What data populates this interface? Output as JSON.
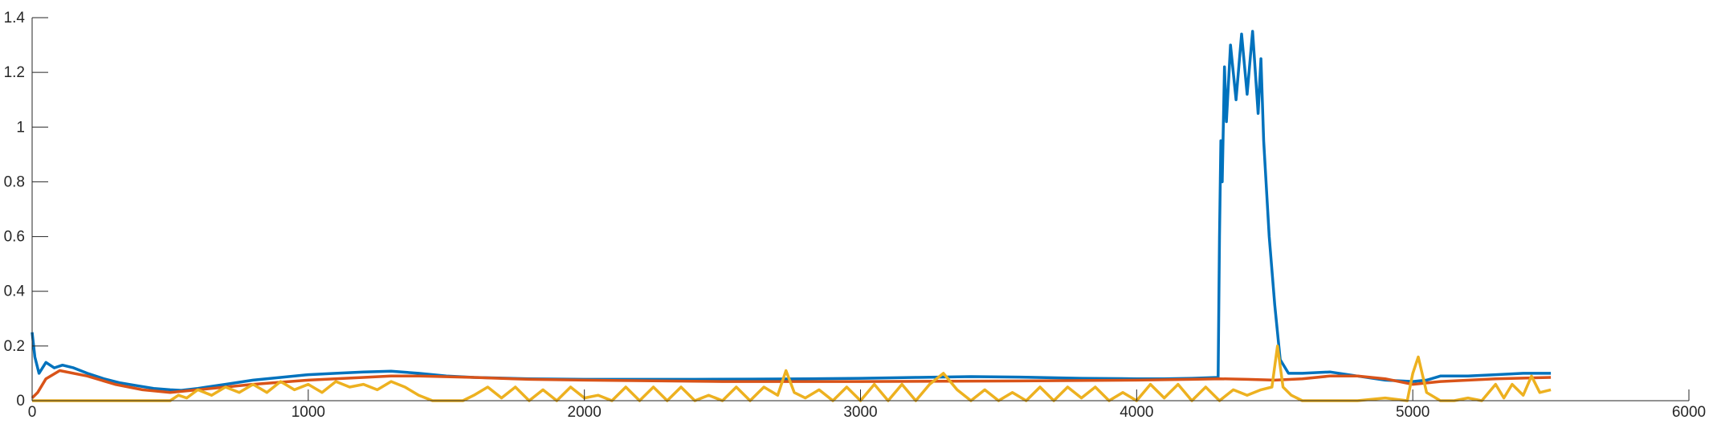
{
  "chart_data": {
    "type": "line",
    "title": "",
    "xlabel": "",
    "ylabel": "",
    "xlim": [
      0,
      6000
    ],
    "ylim": [
      0,
      1.4
    ],
    "grid": false,
    "legend": "none",
    "x_ticks": [
      "0",
      "1000",
      "2000",
      "3000",
      "4000",
      "5000",
      "6000"
    ],
    "y_ticks": [
      "0",
      "0.2",
      "0.4",
      "0.6",
      "0.8",
      "1",
      "1.2",
      "1.4"
    ],
    "series": [
      {
        "color": "#0072BD",
        "x": [
          0,
          10,
          25,
          50,
          80,
          110,
          150,
          200,
          260,
          320,
          380,
          440,
          500,
          540,
          600,
          700,
          800,
          900,
          1000,
          1100,
          1200,
          1300,
          1400,
          1500,
          1600,
          1800,
          2000,
          2200,
          2400,
          2600,
          2800,
          3000,
          3200,
          3400,
          3600,
          3800,
          4000,
          4100,
          4200,
          4295,
          4300,
          4305,
          4310,
          4318,
          4325,
          4340,
          4360,
          4380,
          4400,
          4420,
          4440,
          4450,
          4460,
          4480,
          4500,
          4520,
          4550,
          4600,
          4700,
          4800,
          4900,
          5000,
          5050,
          5100,
          5200,
          5300,
          5400,
          5500
        ],
        "y": [
          0.25,
          0.16,
          0.1,
          0.14,
          0.12,
          0.13,
          0.12,
          0.1,
          0.08,
          0.065,
          0.055,
          0.045,
          0.04,
          0.038,
          0.045,
          0.06,
          0.075,
          0.085,
          0.095,
          0.1,
          0.105,
          0.108,
          0.1,
          0.09,
          0.085,
          0.08,
          0.078,
          0.078,
          0.078,
          0.079,
          0.08,
          0.082,
          0.085,
          0.088,
          0.086,
          0.082,
          0.08,
          0.08,
          0.082,
          0.085,
          0.6,
          0.95,
          0.8,
          1.22,
          1.02,
          1.3,
          1.1,
          1.34,
          1.12,
          1.35,
          1.05,
          1.25,
          0.95,
          0.6,
          0.35,
          0.15,
          0.1,
          0.1,
          0.105,
          0.09,
          0.075,
          0.07,
          0.075,
          0.09,
          0.09,
          0.095,
          0.1,
          0.1
        ]
      },
      {
        "color": "#D95319",
        "x": [
          0,
          20,
          50,
          100,
          200,
          300,
          400,
          500,
          600,
          800,
          1000,
          1200,
          1300,
          1400,
          1600,
          1800,
          2000,
          2500,
          3000,
          3500,
          4000,
          4200,
          4300,
          4400,
          4500,
          4600,
          4700,
          4800,
          4900,
          5000,
          5100,
          5300,
          5500
        ],
        "y": [
          0.01,
          0.03,
          0.08,
          0.11,
          0.09,
          0.06,
          0.04,
          0.03,
          0.04,
          0.06,
          0.075,
          0.085,
          0.09,
          0.09,
          0.085,
          0.078,
          0.075,
          0.07,
          0.07,
          0.072,
          0.075,
          0.078,
          0.08,
          0.078,
          0.075,
          0.08,
          0.09,
          0.09,
          0.08,
          0.06,
          0.07,
          0.08,
          0.085
        ]
      },
      {
        "color": "#EDB120",
        "x": [
          0,
          100,
          300,
          500,
          530,
          560,
          600,
          650,
          700,
          750,
          800,
          850,
          900,
          950,
          1000,
          1050,
          1100,
          1150,
          1200,
          1250,
          1300,
          1350,
          1400,
          1450,
          1500,
          1560,
          1600,
          1650,
          1700,
          1750,
          1800,
          1850,
          1900,
          1950,
          2000,
          2050,
          2100,
          2150,
          2200,
          2250,
          2300,
          2350,
          2400,
          2450,
          2500,
          2550,
          2600,
          2650,
          2700,
          2730,
          2760,
          2800,
          2850,
          2900,
          2950,
          3000,
          3050,
          3100,
          3150,
          3200,
          3250,
          3300,
          3350,
          3400,
          3450,
          3500,
          3550,
          3600,
          3650,
          3700,
          3750,
          3800,
          3850,
          3900,
          3950,
          4000,
          4050,
          4100,
          4150,
          4200,
          4250,
          4300,
          4350,
          4400,
          4450,
          4490,
          4510,
          4530,
          4560,
          4600,
          4700,
          4800,
          4900,
          4980,
          5000,
          5020,
          5050,
          5100,
          5150,
          5200,
          5250,
          5300,
          5330,
          5360,
          5400,
          5430,
          5460,
          5500
        ],
        "y": [
          0,
          0,
          0,
          0,
          0.02,
          0.01,
          0.04,
          0.02,
          0.05,
          0.03,
          0.06,
          0.03,
          0.07,
          0.04,
          0.06,
          0.03,
          0.07,
          0.05,
          0.06,
          0.04,
          0.07,
          0.05,
          0.02,
          0,
          0,
          0,
          0.02,
          0.05,
          0.01,
          0.05,
          0,
          0.04,
          0,
          0.05,
          0.01,
          0.02,
          0,
          0.05,
          0,
          0.05,
          0,
          0.05,
          0,
          0.02,
          0,
          0.05,
          0,
          0.05,
          0.02,
          0.11,
          0.03,
          0.01,
          0.04,
          0,
          0.05,
          0,
          0.06,
          0,
          0.06,
          0,
          0.06,
          0.1,
          0.04,
          0,
          0.04,
          0,
          0.03,
          0,
          0.05,
          0,
          0.05,
          0.01,
          0.05,
          0,
          0.03,
          0,
          0.06,
          0.01,
          0.06,
          0,
          0.05,
          0,
          0.04,
          0.02,
          0.04,
          0.05,
          0.2,
          0.05,
          0.02,
          0,
          0,
          0,
          0.01,
          0,
          0.1,
          0.16,
          0.03,
          0,
          0,
          0.01,
          0,
          0.06,
          0.01,
          0.06,
          0.02,
          0.09,
          0.03,
          0.04
        ]
      }
    ]
  }
}
